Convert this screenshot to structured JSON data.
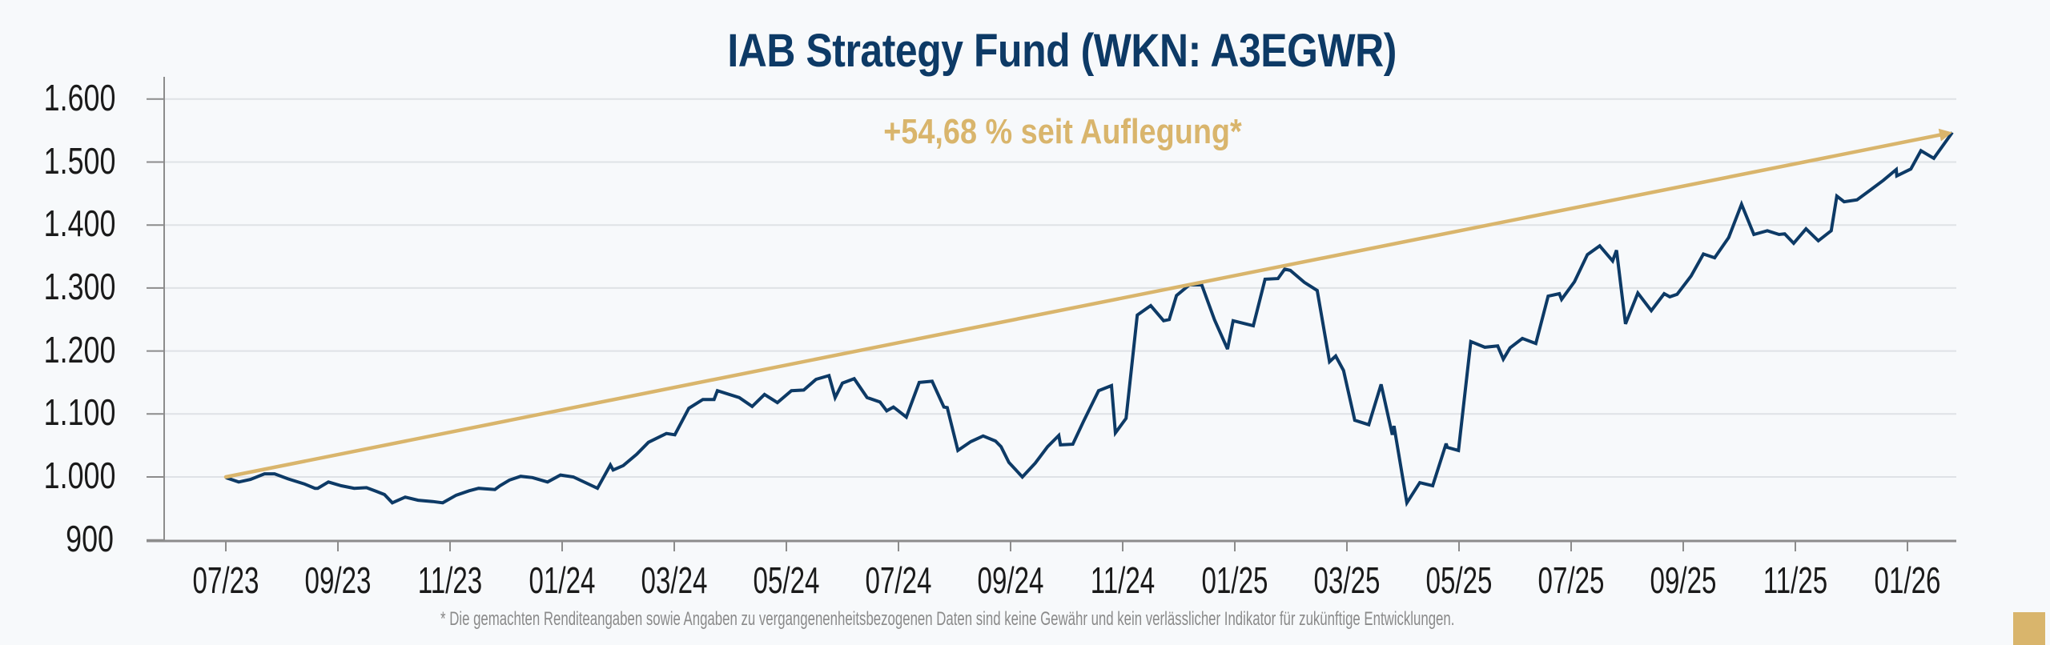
{
  "title": "IAB Strategy Fund (WKN: A3EGWR)",
  "annotation": "+54,68 % seit Auflegung*",
  "footnote": "* Die gemachten Renditeangaben sowie Angaben zu vergangenenheitsbezogenen Daten sind keine Gewähr und kein verlässlicher Indikator für zukünftige Entwicklungen.",
  "colors": {
    "background": "#f7f9fb",
    "title": "#0d3a66",
    "series": "#0d3a66",
    "trend": "#d9b56c",
    "grid": "#dfe2e6",
    "axis": "#8c8c8c",
    "footnote": "#8a8a8a",
    "corner_square": "#d9b56c"
  },
  "chart_data": {
    "type": "line",
    "title": "IAB Strategy Fund (WKN: A3EGWR)",
    "xlabel": "",
    "ylabel": "",
    "ylim": [
      900,
      1600
    ],
    "yticks": [
      900,
      1000,
      1100,
      1200,
      1300,
      1400,
      1500,
      1600
    ],
    "ytick_labels": [
      "900",
      "1.000",
      "1.100",
      "1.200",
      "1.300",
      "1.400",
      "1.500",
      "1.600"
    ],
    "xticks_month_offset": [
      0,
      2,
      4,
      6,
      8,
      10,
      12,
      14,
      16,
      18,
      20,
      22,
      24,
      26,
      28,
      30
    ],
    "xtick_labels": [
      "07/23",
      "09/23",
      "11/23",
      "01/24",
      "03/24",
      "05/24",
      "07/24",
      "09/24",
      "11/24",
      "01/25",
      "03/25",
      "05/25",
      "07/25",
      "09/25",
      "11/25",
      "01/26"
    ],
    "x_unit": "months since 07/23",
    "xlim": [
      -1.1,
      31.6
    ],
    "grid": true,
    "legend": null,
    "annotation": "+54,68 % seit Auflegung*",
    "series": [
      {
        "name": "IAB Strategy Fund",
        "points": [
          [
            0,
            999
          ],
          [
            0.23,
            992
          ],
          [
            0.44,
            996
          ],
          [
            0.69,
            1005
          ],
          [
            0.87,
            1005
          ],
          [
            1.11,
            997
          ],
          [
            1.4,
            989
          ],
          [
            1.59,
            982
          ],
          [
            1.64,
            982
          ],
          [
            1.83,
            992
          ],
          [
            2.06,
            986
          ],
          [
            2.29,
            982
          ],
          [
            2.51,
            983
          ],
          [
            2.69,
            977
          ],
          [
            2.83,
            972
          ],
          [
            2.97,
            959
          ],
          [
            3.2,
            968
          ],
          [
            3.43,
            963
          ],
          [
            3.69,
            961
          ],
          [
            3.87,
            959
          ],
          [
            4.11,
            971
          ],
          [
            4.34,
            978
          ],
          [
            4.51,
            982
          ],
          [
            4.8,
            980
          ],
          [
            4.89,
            986
          ],
          [
            5.06,
            995
          ],
          [
            5.26,
            1001
          ],
          [
            5.47,
            999
          ],
          [
            5.74,
            992
          ],
          [
            5.97,
            1003
          ],
          [
            6.2,
            1000
          ],
          [
            6.63,
            982
          ],
          [
            6.86,
            1019
          ],
          [
            6.91,
            1011
          ],
          [
            7.09,
            1018
          ],
          [
            7.33,
            1036
          ],
          [
            7.54,
            1055
          ],
          [
            7.86,
            1069
          ],
          [
            8.01,
            1067
          ],
          [
            8.26,
            1109
          ],
          [
            8.51,
            1123
          ],
          [
            8.71,
            1123
          ],
          [
            8.77,
            1137
          ],
          [
            9.16,
            1126
          ],
          [
            9.39,
            1112
          ],
          [
            9.61,
            1131
          ],
          [
            9.84,
            1118
          ],
          [
            10.09,
            1137
          ],
          [
            10.31,
            1138
          ],
          [
            10.53,
            1155
          ],
          [
            10.76,
            1161
          ],
          [
            10.87,
            1126
          ],
          [
            11.0,
            1149
          ],
          [
            11.21,
            1156
          ],
          [
            11.44,
            1126
          ],
          [
            11.67,
            1119
          ],
          [
            11.79,
            1105
          ],
          [
            11.91,
            1111
          ],
          [
            12.14,
            1095
          ],
          [
            12.37,
            1150
          ],
          [
            12.6,
            1152
          ],
          [
            12.81,
            1111
          ],
          [
            12.87,
            1110
          ],
          [
            13.06,
            1042
          ],
          [
            13.29,
            1056
          ],
          [
            13.51,
            1065
          ],
          [
            13.73,
            1057
          ],
          [
            13.83,
            1048
          ],
          [
            13.97,
            1023
          ],
          [
            14.21,
            1000
          ],
          [
            14.44,
            1022
          ],
          [
            14.66,
            1048
          ],
          [
            14.86,
            1066
          ],
          [
            14.89,
            1051
          ],
          [
            15.11,
            1052
          ],
          [
            15.3,
            1088
          ],
          [
            15.57,
            1137
          ],
          [
            15.8,
            1145
          ],
          [
            15.87,
            1070
          ],
          [
            16.06,
            1093
          ],
          [
            16.26,
            1257
          ],
          [
            16.5,
            1272
          ],
          [
            16.73,
            1248
          ],
          [
            16.83,
            1250
          ],
          [
            16.96,
            1288
          ],
          [
            17.19,
            1305
          ],
          [
            17.41,
            1305
          ],
          [
            17.64,
            1249
          ],
          [
            17.87,
            1203
          ],
          [
            17.97,
            1248
          ],
          [
            18.33,
            1240
          ],
          [
            18.54,
            1314
          ],
          [
            18.77,
            1315
          ],
          [
            18.89,
            1330
          ],
          [
            18.99,
            1328
          ],
          [
            19.24,
            1309
          ],
          [
            19.47,
            1296
          ],
          [
            19.69,
            1183
          ],
          [
            19.8,
            1192
          ],
          [
            19.94,
            1169
          ],
          [
            20.14,
            1090
          ],
          [
            20.39,
            1083
          ],
          [
            20.61,
            1147
          ],
          [
            20.81,
            1067
          ],
          [
            20.84,
            1081
          ],
          [
            21.07,
            959
          ],
          [
            21.3,
            991
          ],
          [
            21.53,
            986
          ],
          [
            21.77,
            1053
          ],
          [
            21.79,
            1047
          ],
          [
            21.99,
            1042
          ],
          [
            22.21,
            1215
          ],
          [
            22.46,
            1206
          ],
          [
            22.69,
            1208
          ],
          [
            22.79,
            1187
          ],
          [
            22.91,
            1205
          ],
          [
            23.13,
            1220
          ],
          [
            23.37,
            1212
          ],
          [
            23.59,
            1287
          ],
          [
            23.79,
            1291
          ],
          [
            23.83,
            1282
          ],
          [
            24.06,
            1310
          ],
          [
            24.29,
            1353
          ],
          [
            24.51,
            1367
          ],
          [
            24.74,
            1343
          ],
          [
            24.81,
            1360
          ],
          [
            24.97,
            1243
          ],
          [
            25.19,
            1292
          ],
          [
            25.43,
            1264
          ],
          [
            25.66,
            1291
          ],
          [
            25.76,
            1286
          ],
          [
            25.89,
            1290
          ],
          [
            26.14,
            1319
          ],
          [
            26.36,
            1354
          ],
          [
            26.56,
            1348
          ],
          [
            26.81,
            1380
          ],
          [
            27.04,
            1433
          ],
          [
            27.26,
            1385
          ],
          [
            27.5,
            1391
          ],
          [
            27.71,
            1385
          ],
          [
            27.81,
            1386
          ],
          [
            27.97,
            1371
          ],
          [
            28.19,
            1394
          ],
          [
            28.41,
            1375
          ],
          [
            28.64,
            1391
          ],
          [
            28.74,
            1446
          ],
          [
            28.87,
            1437
          ],
          [
            29.1,
            1440
          ],
          [
            29.33,
            1455
          ],
          [
            29.57,
            1471
          ],
          [
            29.8,
            1488
          ],
          [
            29.81,
            1478
          ],
          [
            30.06,
            1489
          ],
          [
            30.24,
            1518
          ],
          [
            30.47,
            1506
          ],
          [
            30.8,
            1547
          ]
        ]
      },
      {
        "name": "Trend seit Auflegung",
        "style": "arrow",
        "points": [
          [
            0,
            1000
          ],
          [
            30.8,
            1547
          ]
        ]
      }
    ]
  }
}
